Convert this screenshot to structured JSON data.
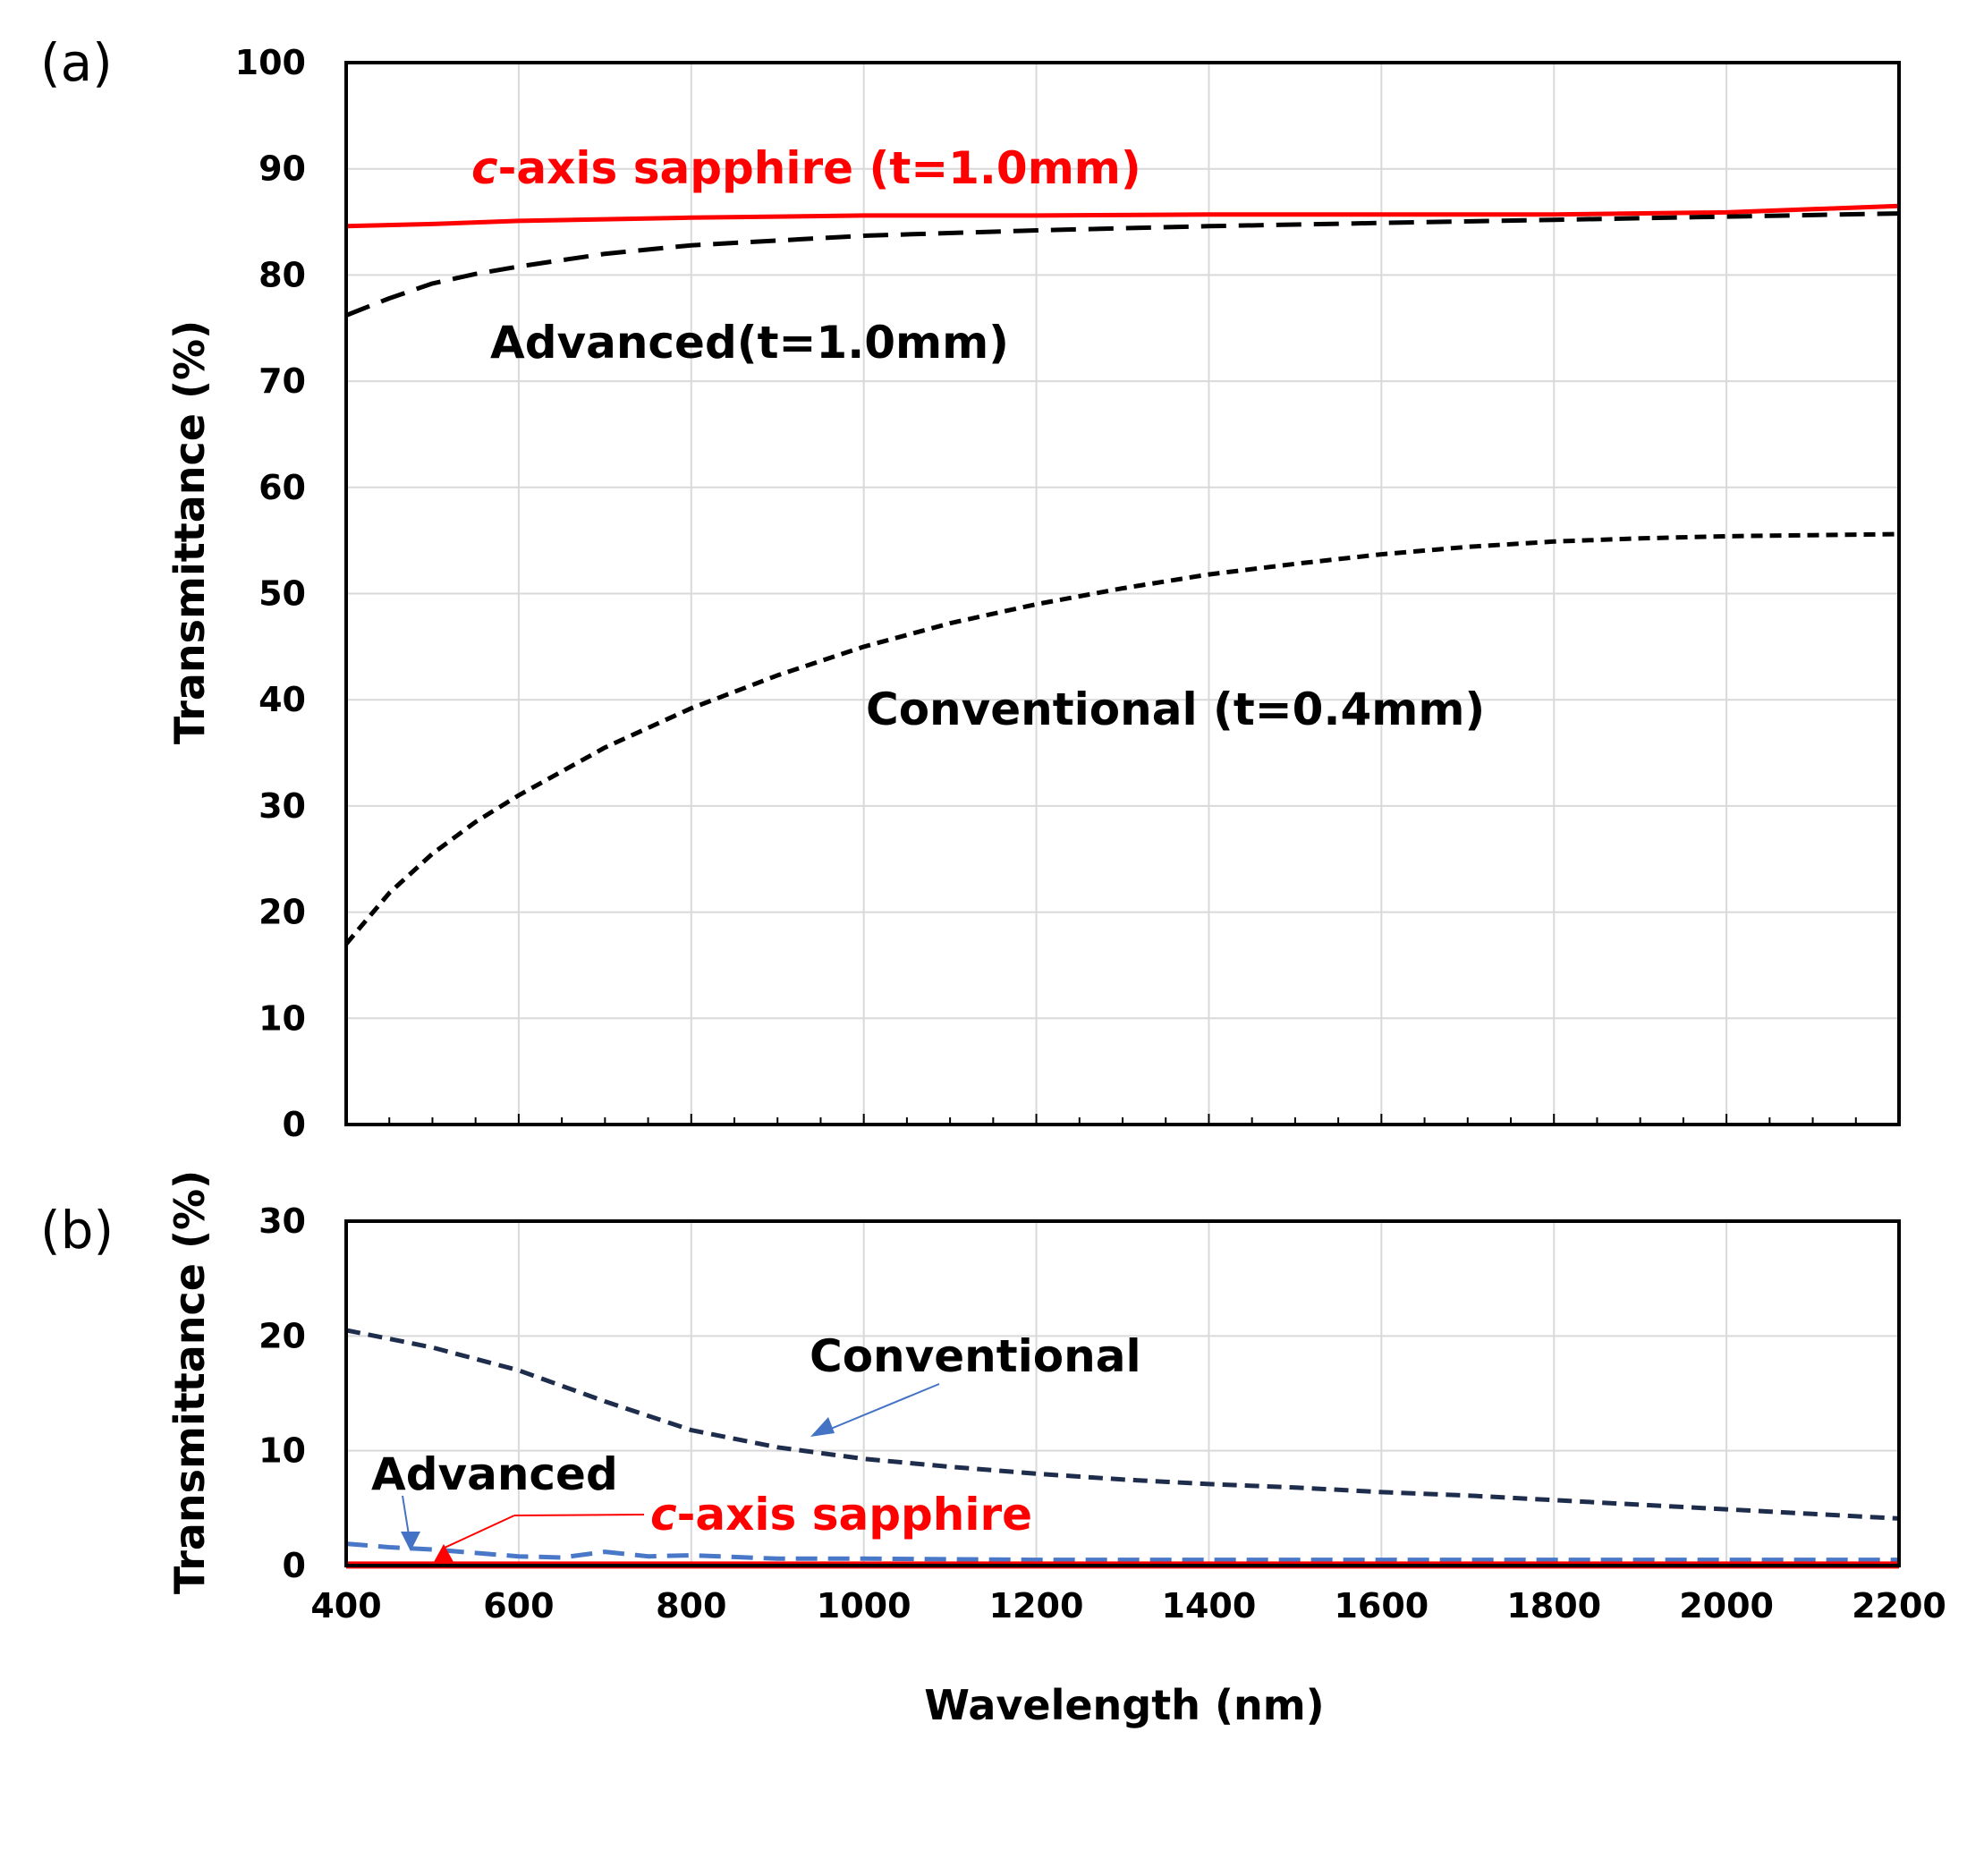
{
  "panel_labels": [
    "(a)",
    "(b)"
  ],
  "annotations_a": {
    "caxis_italic": "c",
    "caxis_rest": "-axis sapphire (t=1.0mm)",
    "advanced": "Advanced(t=1.0mm)",
    "conventional": "Conventional (t=0.4mm)"
  },
  "annotations_b": {
    "conventional": "Conventional",
    "advanced": "Advanced",
    "caxis_italic": "c",
    "caxis_rest": "-axis sapphire"
  },
  "colors": {
    "caxis": "#ff0000",
    "advanced_a": "#000000",
    "conventional_a": "#000000",
    "conventional_b": "#1f2d4d",
    "advanced_b": "#4a78c8",
    "arrow_blue": "#4472c4",
    "arrow_red": "#ff0000",
    "grid": "#d9d9d9"
  },
  "chart_data": [
    {
      "type": "line",
      "panel": "(a)",
      "xlabel": "",
      "ylabel": "Transmittance (%)",
      "xlim": [
        400,
        2200
      ],
      "ylim": [
        0,
        100
      ],
      "xticks": [
        400,
        600,
        800,
        1000,
        1200,
        1400,
        1600,
        1800,
        2000,
        2200
      ],
      "yticks": [
        0,
        10,
        20,
        30,
        40,
        50,
        60,
        70,
        80,
        90,
        100
      ],
      "ytick_labels": [
        "0",
        "10",
        "20",
        "30",
        "40",
        "50",
        "60",
        "70",
        "80",
        "90",
        "100"
      ],
      "grid": true,
      "series": [
        {
          "name": "c-axis sapphire (t=1.0mm)",
          "style": "solid",
          "x": [
            400,
            500,
            600,
            800,
            1000,
            1200,
            1400,
            1600,
            1800,
            2000,
            2100,
            2200
          ],
          "y": [
            84.6,
            84.8,
            85.1,
            85.4,
            85.6,
            85.6,
            85.7,
            85.7,
            85.7,
            85.9,
            86.2,
            86.5
          ]
        },
        {
          "name": "Advanced(t=1.0mm)",
          "style": "dashed",
          "x": [
            400,
            450,
            500,
            550,
            600,
            700,
            800,
            1000,
            1200,
            1400,
            1600,
            1800,
            2000,
            2200
          ],
          "y": [
            76.2,
            77.8,
            79.2,
            80.1,
            80.8,
            82.0,
            82.8,
            83.7,
            84.2,
            84.6,
            84.9,
            85.2,
            85.5,
            85.8
          ]
        },
        {
          "name": "Conventional (t=0.4mm)",
          "style": "dashed",
          "x": [
            400,
            450,
            500,
            550,
            600,
            700,
            800,
            900,
            1000,
            1100,
            1200,
            1300,
            1400,
            1500,
            1600,
            1700,
            1800,
            1900,
            2000,
            2100,
            2200
          ],
          "y": [
            17.0,
            21.8,
            25.5,
            28.5,
            31.0,
            35.5,
            39.2,
            42.3,
            45.0,
            47.2,
            49.0,
            50.5,
            51.8,
            52.8,
            53.7,
            54.4,
            54.9,
            55.2,
            55.4,
            55.5,
            55.6
          ]
        }
      ]
    },
    {
      "type": "line",
      "panel": "(b)",
      "xlabel": "Wavelength (nm)",
      "ylabel": "Transmittance (%)",
      "xlim": [
        400,
        2200
      ],
      "ylim": [
        0,
        30
      ],
      "xticks": [
        400,
        600,
        800,
        1000,
        1200,
        1400,
        1600,
        1800,
        2000,
        2200
      ],
      "xtick_labels": [
        "400",
        "600",
        "800",
        "1000",
        "1200",
        "1400",
        "1600",
        "1800",
        "2000",
        "2200"
      ],
      "yticks": [
        0,
        10,
        20,
        30
      ],
      "ytick_labels": [
        "0",
        "10",
        "20",
        "30"
      ],
      "grid": true,
      "series": [
        {
          "name": "Conventional",
          "style": "dashed",
          "x": [
            400,
            500,
            600,
            700,
            800,
            900,
            1000,
            1100,
            1200,
            1300,
            1400,
            1500,
            1600,
            1700,
            1800,
            1900,
            2000,
            2100,
            2200
          ],
          "y": [
            20.5,
            19.0,
            17.0,
            14.3,
            11.8,
            10.3,
            9.3,
            8.6,
            8.0,
            7.5,
            7.1,
            6.8,
            6.4,
            6.1,
            5.7,
            5.3,
            4.9,
            4.5,
            4.1
          ]
        },
        {
          "name": "Advanced",
          "style": "dashed",
          "x": [
            400,
            450,
            500,
            550,
            600,
            650,
            700,
            750,
            800,
            900,
            1000,
            1200,
            1400,
            1600,
            1800,
            2000,
            2200
          ],
          "y": [
            1.9,
            1.6,
            1.4,
            1.1,
            0.8,
            0.7,
            1.2,
            0.8,
            0.9,
            0.6,
            0.6,
            0.5,
            0.5,
            0.5,
            0.5,
            0.5,
            0.5
          ]
        },
        {
          "name": "c-axis sapphire",
          "style": "solid",
          "x": [
            400,
            2200
          ],
          "y": [
            0.05,
            0.05
          ]
        }
      ]
    }
  ]
}
